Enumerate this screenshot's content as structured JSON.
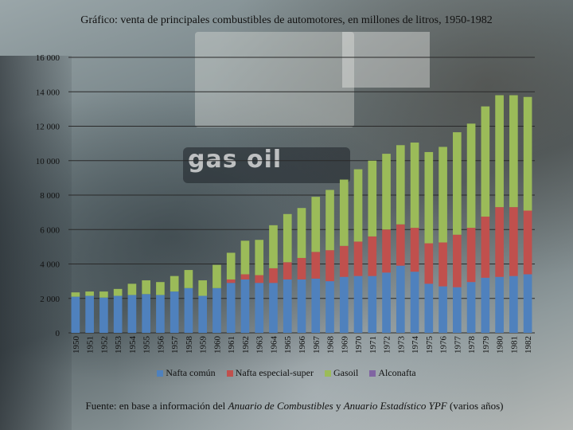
{
  "chart_data": {
    "type": "bar",
    "stacked": true,
    "title": "Gráfico: venta de principales combustibles de automotores, en millones de litros, 1950-1982",
    "xlabel": "",
    "ylabel": "",
    "ylim": [
      0,
      16000
    ],
    "yticks": [
      0,
      2000,
      4000,
      6000,
      8000,
      10000,
      12000,
      14000,
      16000
    ],
    "ytick_labels": [
      "0",
      "2 000",
      "4 000",
      "6 000",
      "8 000",
      "10 000",
      "12 000",
      "14 000",
      "16 000"
    ],
    "grid": true,
    "legend_position": "bottom",
    "categories": [
      "1950",
      "1951",
      "1952",
      "1953",
      "1954",
      "1955",
      "1956",
      "1957",
      "1958",
      "1959",
      "1960",
      "1961",
      "1962",
      "1963",
      "1964",
      "1965",
      "1966",
      "1967",
      "1968",
      "1969",
      "1970",
      "1971",
      "1972",
      "1973",
      "1974",
      "1975",
      "1976",
      "1977",
      "1978",
      "1979",
      "1980",
      "1981",
      "1982"
    ],
    "series": [
      {
        "name": "Nafta común",
        "color": "#4f81bd",
        "values": [
          2100,
          2150,
          2050,
          2150,
          2200,
          2250,
          2200,
          2400,
          2600,
          2150,
          2600,
          2900,
          3100,
          2900,
          2900,
          3100,
          3100,
          3150,
          3000,
          3250,
          3300,
          3300,
          3500,
          3900,
          3550,
          2850,
          2700,
          2650,
          2950,
          3200,
          3250,
          3300,
          3400
        ]
      },
      {
        "name": "Nafta especial-super",
        "color": "#c0504d",
        "values": [
          0,
          0,
          0,
          0,
          0,
          0,
          0,
          0,
          0,
          0,
          0,
          200,
          300,
          450,
          850,
          1000,
          1250,
          1550,
          1800,
          1800,
          2000,
          2300,
          2500,
          2400,
          2550,
          2350,
          2550,
          3050,
          3150,
          3550,
          4050,
          4000,
          3700
        ]
      },
      {
        "name": "Gasoil",
        "color": "#9bbb59",
        "values": [
          250,
          250,
          350,
          400,
          650,
          800,
          750,
          900,
          1050,
          900,
          1350,
          1550,
          1950,
          2050,
          2500,
          2800,
          2900,
          3200,
          3500,
          3850,
          4200,
          4400,
          4400,
          4600,
          4950,
          5300,
          5550,
          5950,
          6050,
          6400,
          6500,
          6500,
          6600
        ]
      },
      {
        "name": "Alconafta",
        "color": "#8064a2",
        "values": [
          0,
          0,
          0,
          0,
          0,
          0,
          0,
          0,
          0,
          0,
          0,
          0,
          0,
          0,
          0,
          0,
          0,
          0,
          0,
          0,
          0,
          0,
          0,
          0,
          0,
          0,
          0,
          0,
          0,
          0,
          0,
          0,
          0
        ]
      }
    ]
  },
  "footer": {
    "prefix": "Fuente: en base a información del ",
    "source1": "Anuario de Combustibles",
    "middle": " y ",
    "source2": "Anuario Estadístico YPF",
    "suffix": " (varios años)"
  },
  "background": {
    "photo_text": "gas oil"
  }
}
